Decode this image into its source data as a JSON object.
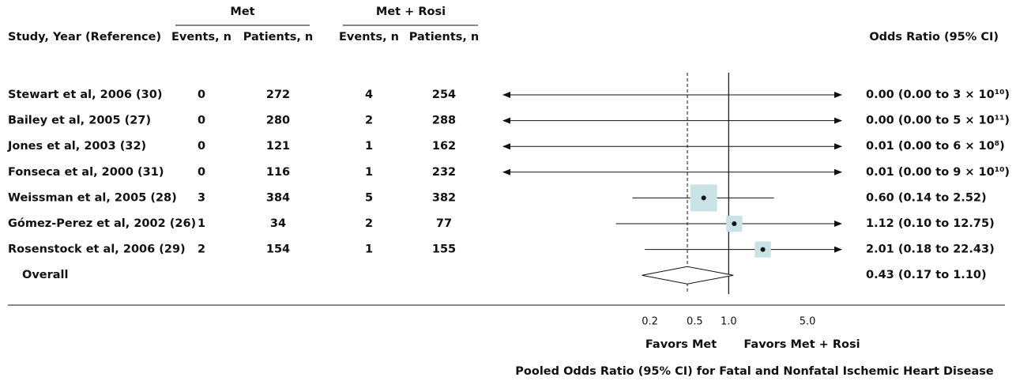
{
  "chart_data": {
    "type": "forest",
    "title": "Pooled Odds Ratio (95% CI) for Fatal and Nonfatal Ischemic Heart Disease",
    "groups": [
      "Met",
      "Met + Rosi"
    ],
    "columns": [
      "Study, Year (Reference)",
      "Events, n",
      "Patients, n",
      "Events, n",
      "Patients, n",
      "Odds Ratio (95% CI)"
    ],
    "studies": [
      {
        "name": "Stewart et al, 2006 (30)",
        "met_events": 0,
        "met_patients": 272,
        "rosi_events": 4,
        "rosi_patients": 254,
        "or": 0.0,
        "ci_low": 0.0,
        "ci_high": 30000000000.0,
        "value_label": "0.00 (0.00 to 3 × 10¹⁰)"
      },
      {
        "name": "Bailey et al, 2005 (27)",
        "met_events": 0,
        "met_patients": 280,
        "rosi_events": 2,
        "rosi_patients": 288,
        "or": 0.0,
        "ci_low": 0.0,
        "ci_high": 500000000000.0,
        "value_label": "0.00 (0.00 to 5 × 10¹¹)"
      },
      {
        "name": "Jones et al, 2003 (32)",
        "met_events": 0,
        "met_patients": 121,
        "rosi_events": 1,
        "rosi_patients": 162,
        "or": 0.01,
        "ci_low": 0.0,
        "ci_high": 600000000.0,
        "value_label": "0.01 (0.00 to 6 × 10⁸)"
      },
      {
        "name": "Fonseca et al, 2000 (31)",
        "met_events": 0,
        "met_patients": 116,
        "rosi_events": 1,
        "rosi_patients": 232,
        "or": 0.01,
        "ci_low": 0.0,
        "ci_high": 90000000000.0,
        "value_label": "0.01 (0.00 to 9 × 10¹⁰)"
      },
      {
        "name": "Weissman et al, 2005 (28)",
        "met_events": 3,
        "met_patients": 384,
        "rosi_events": 5,
        "rosi_patients": 382,
        "or": 0.6,
        "ci_low": 0.14,
        "ci_high": 2.52,
        "value_label": "0.60 (0.14 to 2.52)"
      },
      {
        "name": "Gómez-Perez et al, 2002 (26)",
        "met_events": 1,
        "met_patients": 34,
        "rosi_events": 2,
        "rosi_patients": 77,
        "or": 1.12,
        "ci_low": 0.1,
        "ci_high": 12.75,
        "value_label": "1.12 (0.10 to 12.75)"
      },
      {
        "name": "Rosenstock et al, 2006 (29)",
        "met_events": 2,
        "met_patients": 154,
        "rosi_events": 1,
        "rosi_patients": 155,
        "or": 2.01,
        "ci_low": 0.18,
        "ci_high": 22.43,
        "value_label": "2.01 (0.18 to 22.43)"
      }
    ],
    "overall": {
      "name": "Overall",
      "or": 0.43,
      "ci_low": 0.17,
      "ci_high": 1.1,
      "value_label": "0.43 (0.17 to 1.10)"
    },
    "xscale": "log",
    "xlim": [
      0.01,
      10
    ],
    "xticks": [
      0.2,
      0.5,
      {
        "value": 1,
        "label": "1.0"
      },
      {
        "value": 5,
        "label": "5.0"
      }
    ],
    "null_line": 1,
    "favors": [
      "Favors Met",
      "Favors Met + Rosi"
    ],
    "box_color": "#c8e2e5"
  }
}
